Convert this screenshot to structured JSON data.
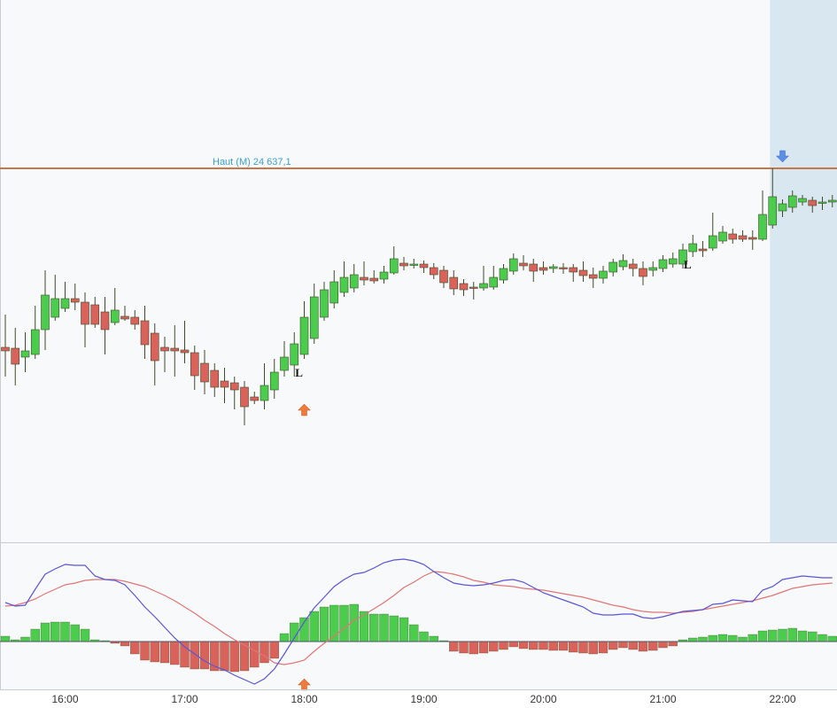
{
  "chart_data": [
    {
      "type": "candlestick",
      "x": [
        "15:30",
        "15:35",
        "15:40",
        "15:45",
        "15:50",
        "15:55",
        "16:00",
        "16:05",
        "16:10",
        "16:15",
        "16:20",
        "16:25",
        "16:30",
        "16:35",
        "16:40",
        "16:45",
        "16:50",
        "16:55",
        "17:00",
        "17:05",
        "17:10",
        "17:15",
        "17:20",
        "17:25",
        "17:30",
        "17:35",
        "17:40",
        "17:45",
        "17:50",
        "17:55",
        "18:00",
        "18:05",
        "18:10",
        "18:15",
        "18:20",
        "18:25",
        "18:30",
        "18:35",
        "18:40",
        "18:45",
        "18:50",
        "18:55",
        "19:00",
        "19:05",
        "19:10",
        "19:15",
        "19:20",
        "19:25",
        "19:30",
        "19:35",
        "19:40",
        "19:45",
        "19:50",
        "19:55",
        "20:00",
        "20:05",
        "20:10",
        "20:15",
        "20:20",
        "20:25",
        "20:30",
        "20:35",
        "20:40",
        "20:45",
        "20:50",
        "20:55",
        "21:00",
        "21:05",
        "21:10",
        "21:15",
        "21:20",
        "21:25",
        "21:30",
        "21:35",
        "21:40",
        "21:45",
        "21:50",
        "21:55",
        "22:00",
        "22:05",
        "22:10",
        "22:15",
        "22:20",
        "22:25"
      ],
      "open": [
        24536.1,
        24535.6,
        24530.6,
        24532.1,
        24546.1,
        24553.1,
        24558.1,
        24563.6,
        24561.6,
        24560.1,
        24556.1,
        24550.1,
        24553.6,
        24553.1,
        24551.1,
        24544.1,
        24536.1,
        24535.6,
        24534.6,
        24533.1,
        24527.1,
        24523.1,
        24517.1,
        24516.1,
        24513.6,
        24508.1,
        24506.1,
        24512.1,
        24523.1,
        24526.1,
        24532.1,
        24541.1,
        24553.1,
        24561.1,
        24567.1,
        24569.6,
        24575.6,
        24575.1,
        24574.6,
        24578.1,
        24583.6,
        24582.6,
        24583.1,
        24581.1,
        24579.6,
        24575.6,
        24572.1,
        24570.1,
        24569.6,
        24570.1,
        24574.1,
        24579.1,
        24583.6,
        24583.1,
        24581.1,
        24580.6,
        24581.1,
        24581.1,
        24579.6,
        24577.1,
        24575.1,
        24578.6,
        24581.6,
        24583.1,
        24580.6,
        24579.6,
        24580.6,
        24583.1,
        24583.1,
        24590.1,
        24591.6,
        24592.1,
        24596.1,
        24600.1,
        24599.1,
        24598.1,
        24597.1,
        24605.1,
        24613.1,
        24615.1,
        24618.1,
        24619.1,
        24617.6,
        24618.1
      ],
      "high": [
        24554.6,
        24547.1,
        24544.6,
        24559.6,
        24579.6,
        24577.1,
        24573.1,
        24572.1,
        24567.1,
        24564.6,
        24564.6,
        24569.6,
        24559.6,
        24557.1,
        24559.6,
        24549.6,
        24542.1,
        24548.6,
        24551.1,
        24537.1,
        24534.6,
        24527.1,
        24524.6,
        24519.6,
        24517.1,
        24511.1,
        24527.1,
        24529.6,
        24539.6,
        24544.6,
        24562.1,
        24572.1,
        24573.1,
        24579.6,
        24584.6,
        24583.1,
        24584.6,
        24579.6,
        24582.1,
        24593.1,
        24587.1,
        24586.1,
        24585.1,
        24583.6,
        24582.1,
        24579.6,
        24574.6,
        24573.1,
        24582.1,
        24582.1,
        24583.1,
        24589.1,
        24588.1,
        24586.1,
        24584.6,
        24583.1,
        24583.6,
        24583.1,
        24584.6,
        24581.1,
        24582.1,
        24586.1,
        24588.6,
        24586.1,
        24584.6,
        24584.6,
        24588.1,
        24589.6,
        24594.6,
        24599.6,
        24596.1,
        24612.1,
        24604.6,
        24603.1,
        24602.1,
        24602.1,
        24624.6,
        24637.1,
        24619.6,
        24624.6,
        24622.1,
        24621.1,
        24621.1,
        24622.1
      ],
      "low": [
        24519.6,
        24514.6,
        24522.1,
        24529.6,
        24534.6,
        24551.1,
        24556.1,
        24557.1,
        24536.1,
        24547.1,
        24532.1,
        24548.6,
        24551.1,
        24546.1,
        24529.6,
        24514.6,
        24522.1,
        24519.6,
        24527.1,
        24512.1,
        24509.6,
        24508.1,
        24504.6,
        24501.1,
        24492.1,
        24504.1,
        24501.1,
        24507.1,
        24519.6,
        24519.6,
        24529.6,
        24538.1,
        24551.1,
        24558.1,
        24564.6,
        24567.1,
        24571.1,
        24572.1,
        24572.1,
        24577.1,
        24579.6,
        24580.6,
        24578.1,
        24574.6,
        24569.6,
        24565.6,
        24565.1,
        24563.1,
        24568.1,
        24568.6,
        24572.1,
        24577.1,
        24579.6,
        24573.1,
        24577.1,
        24578.1,
        24577.6,
        24573.1,
        24573.1,
        24569.6,
        24572.1,
        24576.1,
        24579.6,
        24576.1,
        24571.1,
        24576.1,
        24578.6,
        24581.1,
        24580.6,
        24587.1,
        24587.1,
        24590.6,
        24594.6,
        24594.6,
        24595.6,
        24591.1,
        24596.1,
        24603.1,
        24609.6,
        24612.1,
        24616.1,
        24612.1,
        24613.6,
        24615.1
      ],
      "close": [
        24534.1,
        24526.6,
        24534.1,
        24546.1,
        24565.6,
        24563.6,
        24563.6,
        24561.6,
        24549.1,
        24549.1,
        24546.1,
        24557.1,
        24552.1,
        24549.1,
        24537.6,
        24528.6,
        24534.1,
        24534.1,
        24533.1,
        24520.1,
        24516.6,
        24513.6,
        24513.6,
        24512.1,
        24502.6,
        24506.1,
        24514.6,
        24522.1,
        24530.6,
        24538.1,
        24553.1,
        24564.6,
        24568.6,
        24573.1,
        24575.6,
        24577.1,
        24574.1,
        24573.6,
        24578.6,
        24586.1,
        24582.1,
        24583.1,
        24581.1,
        24577.1,
        24572.6,
        24569.1,
        24568.6,
        24569.6,
        24572.1,
        24575.6,
        24580.6,
        24586.1,
        24582.1,
        24579.1,
        24579.6,
        24581.6,
        24580.6,
        24578.6,
        24576.6,
        24575.1,
        24579.1,
        24584.1,
        24585.1,
        24580.6,
        24576.1,
        24581.1,
        24585.6,
        24586.1,
        24591.1,
        24594.6,
        24590.6,
        24599.1,
        24601.1,
        24597.1,
        24597.1,
        24597.1,
        24611.1,
        24621.1,
        24617.1,
        24621.6,
        24620.1,
        24616.1,
        24618.1,
        24619.1
      ],
      "up_color": "#4ccc4c",
      "down_color": "#d9635a",
      "ylim": [
        24426.1,
        24732.1
      ],
      "levels": [
        {
          "value": 24637.1,
          "label": "Haut (M) 24 637,1",
          "color": "#c8764a"
        }
      ],
      "markers": [
        {
          "label": "L",
          "at": "17:55"
        },
        {
          "label": "L",
          "at": "21:10"
        }
      ],
      "signals": [
        {
          "direction": "up",
          "at": "18:00",
          "color": "#f07a3c"
        },
        {
          "direction": "down",
          "at": "22:00",
          "color": "#5b8ee6"
        }
      ],
      "highlight_from": "21:55",
      "highlight_color": "#d9e7f1"
    },
    {
      "type": "macd",
      "histogram": {
        "up_color": "#4ccc4c",
        "down_color": "#d9635a",
        "values": [
          0.6,
          0.2,
          0.5,
          1.4,
          2.1,
          2.2,
          2.2,
          1.9,
          1.4,
          0.2,
          0.1,
          -0.2,
          -0.5,
          -1.4,
          -2.1,
          -2.3,
          -2.4,
          -2.6,
          -2.9,
          -3.1,
          -3.1,
          -3.3,
          -3.3,
          -3.4,
          -3.3,
          -2.9,
          -2.4,
          -1.9,
          0.9,
          2.1,
          2.7,
          3.4,
          3.9,
          4.1,
          4.1,
          4.2,
          3.4,
          3.1,
          3.1,
          2.9,
          2.7,
          1.9,
          1.1,
          0.6,
          0.1,
          -1.1,
          -1.3,
          -1.4,
          -1.3,
          -1.1,
          -0.9,
          -0.6,
          -0.8,
          -0.9,
          -0.9,
          -1.0,
          -1.0,
          -1.2,
          -1.3,
          -1.4,
          -1.3,
          -0.9,
          -0.7,
          -0.9,
          -1.1,
          -1.0,
          -0.7,
          -0.5,
          0.2,
          0.4,
          0.5,
          0.7,
          0.8,
          0.7,
          0.5,
          0.8,
          1.2,
          1.3,
          1.4,
          1.5,
          1.2,
          1.1,
          0.8,
          0.6
        ]
      },
      "macd": {
        "color": "#5a55d6",
        "values": [
          4.4,
          4.0,
          4.1,
          5.9,
          7.6,
          8.2,
          8.7,
          8.6,
          8.6,
          7.4,
          7.0,
          6.9,
          6.4,
          5.2,
          3.9,
          2.8,
          1.6,
          0.4,
          -0.6,
          -1.4,
          -2.2,
          -2.8,
          -3.2,
          -3.8,
          -4.3,
          -4.8,
          -4.2,
          -3.1,
          -1.4,
          0.4,
          2.2,
          3.8,
          5.0,
          6.2,
          7.0,
          7.6,
          7.8,
          8.3,
          8.9,
          9.2,
          9.3,
          9.1,
          8.7,
          7.9,
          7.2,
          6.6,
          6.4,
          6.3,
          6.4,
          6.6,
          6.9,
          7.0,
          6.7,
          6.1,
          5.5,
          5.1,
          4.7,
          4.3,
          3.9,
          3.2,
          3.0,
          3.0,
          3.1,
          3.1,
          2.7,
          2.6,
          2.8,
          3.1,
          3.4,
          3.5,
          3.6,
          4.2,
          4.3,
          4.7,
          4.6,
          4.5,
          5.8,
          6.2,
          7.0,
          7.2,
          7.4,
          7.3,
          7.2,
          7.2
        ]
      },
      "signal": {
        "color": "#e07575",
        "values": [
          4.0,
          4.1,
          4.4,
          4.8,
          5.4,
          5.9,
          6.4,
          6.6,
          6.9,
          7.0,
          7.0,
          7.0,
          6.8,
          6.5,
          6.2,
          5.7,
          5.2,
          4.6,
          3.9,
          3.2,
          2.4,
          1.7,
          0.9,
          0.2,
          -0.4,
          -1.0,
          -1.6,
          -2.4,
          -2.6,
          -2.4,
          -2.1,
          -1.1,
          -0.2,
          0.6,
          1.5,
          2.4,
          3.0,
          3.7,
          4.4,
          5.2,
          6.1,
          6.7,
          7.4,
          7.9,
          7.8,
          7.6,
          7.3,
          6.9,
          6.7,
          6.4,
          6.3,
          6.2,
          6.0,
          5.9,
          5.8,
          5.6,
          5.4,
          5.2,
          5.0,
          4.7,
          4.4,
          4.1,
          3.9,
          3.6,
          3.4,
          3.3,
          3.3,
          3.2,
          3.3,
          3.4,
          3.6,
          3.8,
          4.0,
          4.2,
          4.4,
          4.6,
          4.9,
          5.2,
          5.6,
          6.0,
          6.2,
          6.4,
          6.5,
          6.6
        ]
      },
      "ylim": [
        -5.4,
        11.2
      ],
      "xticks": [
        "16:00",
        "17:00",
        "18:00",
        "19:00",
        "20:00",
        "21:00",
        "22:00"
      ]
    }
  ]
}
